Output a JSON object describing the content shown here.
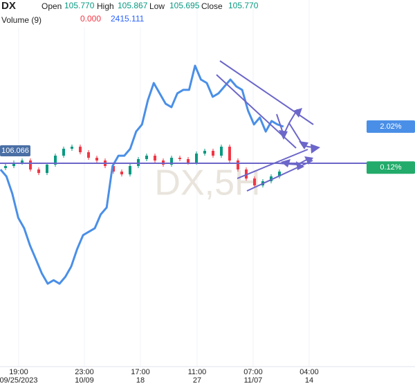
{
  "chart_data": {
    "type": "candlestick",
    "symbol": "DX",
    "watermark": "DX,5H",
    "header_fields": [
      {
        "name": "Open",
        "value": "105.770"
      },
      {
        "name": "High",
        "value": "105.867"
      },
      {
        "name": "Low",
        "value": "105.695"
      },
      {
        "name": "Close",
        "value": "105.770"
      }
    ],
    "volume": {
      "name": "Volume (9)",
      "values": [
        "0.000",
        "2415.111"
      ]
    },
    "x": [
      0,
      1,
      2,
      3,
      4,
      5,
      6,
      7,
      8,
      9,
      10,
      11,
      12,
      13,
      14,
      15,
      16,
      17,
      18,
      19,
      20,
      21,
      22,
      23,
      24,
      25,
      26,
      27,
      28,
      29,
      30,
      31,
      32,
      33
    ],
    "open": [
      105.82,
      105.849,
      105.898,
      105.928,
      105.8,
      105.75,
      105.869,
      105.997,
      106.096,
      106.125,
      106.046,
      105.967,
      105.928,
      105.849,
      105.77,
      105.73,
      105.849,
      105.948,
      105.997,
      105.928,
      105.869,
      105.967,
      105.948,
      105.898,
      106.027,
      106.066,
      105.997,
      106.125,
      105.928,
      105.8,
      105.671,
      105.573,
      105.632,
      105.701
    ],
    "high": [
      105.879,
      105.928,
      105.958,
      105.958,
      105.83,
      105.899,
      106.027,
      106.126,
      106.155,
      106.155,
      106.076,
      105.997,
      105.958,
      105.879,
      105.8,
      105.879,
      105.978,
      106.027,
      106.027,
      105.958,
      105.997,
      105.997,
      105.978,
      106.057,
      106.096,
      106.096,
      106.155,
      106.155,
      105.958,
      105.83,
      105.701,
      105.662,
      105.731,
      105.8
    ],
    "low": [
      105.79,
      105.819,
      105.868,
      105.77,
      105.72,
      105.72,
      105.839,
      105.967,
      106.066,
      106.016,
      105.937,
      105.898,
      105.819,
      105.74,
      105.7,
      105.7,
      105.819,
      105.918,
      105.898,
      105.839,
      105.839,
      105.918,
      105.868,
      105.868,
      105.997,
      105.967,
      105.967,
      105.898,
      105.77,
      105.641,
      105.543,
      105.543,
      105.602,
      105.671
    ],
    "close": [
      105.849,
      105.898,
      105.928,
      105.8,
      105.75,
      105.869,
      105.997,
      106.096,
      106.125,
      106.046,
      105.967,
      105.928,
      105.849,
      105.77,
      105.73,
      105.849,
      105.948,
      105.997,
      105.928,
      105.869,
      105.967,
      105.948,
      105.898,
      106.027,
      106.066,
      105.997,
      106.125,
      105.928,
      105.8,
      105.671,
      105.573,
      105.632,
      105.701,
      105.77
    ],
    "up_color": "#089981",
    "down_color": "#f23645",
    "price_line": {
      "value": 106.066,
      "color": "#4a6fa5"
    },
    "change_label": {
      "value": 0.12,
      "label": "0.12%",
      "color": "#22ab6a"
    },
    "overlay": {
      "type": "line",
      "axis": "y2",
      "color": "#4a8fe7",
      "x": [
        -0.6,
        0.11,
        0.82,
        1.53,
        2.24,
        2.95,
        3.66,
        4.37,
        5.08,
        5.79,
        6.5,
        7.21,
        7.92,
        8.63,
        9.34,
        10.05,
        10.76,
        11.47,
        12.18,
        12.89,
        13.6,
        14.31,
        15.02,
        15.73,
        16.44,
        17.15,
        17.86,
        18.57,
        19.28,
        19.99,
        20.7,
        21.41,
        22.12,
        22.83,
        23.54,
        24.25,
        24.96,
        25.67,
        26.38,
        27.09,
        27.8,
        28.51,
        29.22,
        29.93,
        30.64,
        31.35,
        32.06,
        32.77,
        33.48
      ],
      "values": [
        0.03,
        -0.29,
        -1.09,
        -2.21,
        -2.69,
        -3.49,
        -4.13,
        -4.78,
        -5.26,
        -5.1,
        -5.26,
        -4.94,
        -4.46,
        -3.65,
        -3.01,
        -2.85,
        -2.69,
        -2.05,
        -1.73,
        0.19,
        0.67,
        0.67,
        0.99,
        1.79,
        2.12,
        3.24,
        4.04,
        3.56,
        3.08,
        2.92,
        3.56,
        3.72,
        3.72,
        4.84,
        4.2,
        4.04,
        3.4,
        3.56,
        3.88,
        4.2,
        3.88,
        3.72,
        2.76,
        2.12,
        2.44,
        1.79,
        2.28,
        2.12,
        2.02
      ],
      "value_labels": [
        null,
        null,
        null,
        null,
        null,
        null,
        null,
        null,
        null,
        null,
        null,
        null,
        null,
        null,
        null,
        null,
        null,
        null,
        null,
        null,
        null,
        null,
        null,
        null,
        null,
        null,
        null,
        null,
        null,
        null,
        null,
        null,
        null,
        null,
        null,
        null,
        null,
        null,
        null,
        null,
        null,
        null,
        null,
        null,
        null,
        null,
        null,
        null,
        "2.02%"
      ]
    },
    "xlim": [
      -0.667,
      49.333
    ],
    "ylim": [
      102.987,
      108.218
    ],
    "y2lim": [
      -9.103,
      7.885
    ],
    "xticks": [
      {
        "value": 1.58,
        "label": "19:00",
        "date": "09/25/2023"
      },
      {
        "value": 9.5,
        "label": "23:00",
        "date": "10/09"
      },
      {
        "value": 16.25,
        "label": "17:00",
        "date": "18"
      },
      {
        "value": 23.08,
        "label": "11:00",
        "date": "27"
      },
      {
        "value": 29.83,
        "label": "07:00",
        "date": "11/07"
      },
      {
        "value": 36.58,
        "label": "04:00",
        "date": "14"
      }
    ],
    "grid": true
  }
}
